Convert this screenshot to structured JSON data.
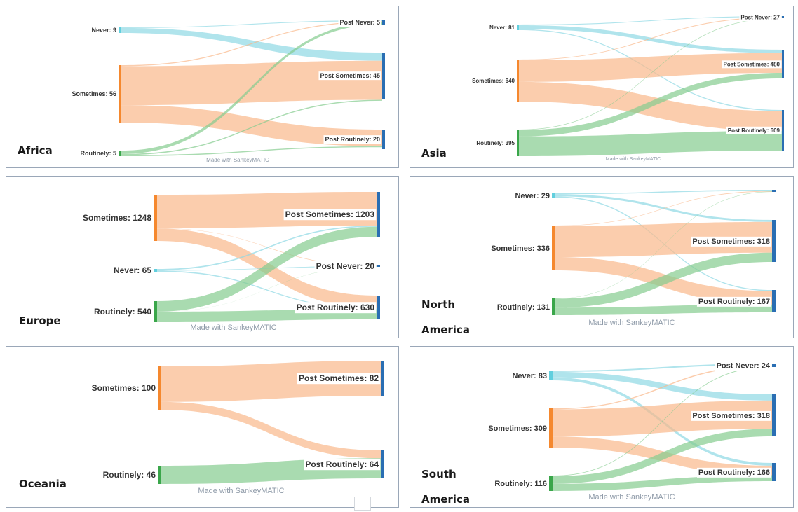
{
  "credit": "Made with SankeyMATIC",
  "colors": {
    "never": "#61cfde",
    "sometimes": "#f5882e",
    "routinely": "#3aa64a",
    "post": "#2a6eb3",
    "flow_never": "#8fd8e4",
    "flow_sometimes": "#f9b88a",
    "flow_routinely": "#84cc8e",
    "border": "#9aa7b8"
  },
  "panels": [
    {
      "region": "Africa",
      "sources": [
        {
          "key": "never",
          "label": "Never: 9",
          "value": 9
        },
        {
          "key": "sometimes",
          "label": "Sometimes: 56",
          "value": 56
        },
        {
          "key": "routinely",
          "label": "Routinely: 5",
          "value": 5
        }
      ],
      "targets": [
        {
          "key": "never",
          "label": "Post Never: 5",
          "value": 5
        },
        {
          "key": "sometimes",
          "label": "Post Sometimes: 45",
          "value": 45
        },
        {
          "key": "routinely",
          "label": "Post Routinely: 20",
          "value": 20
        }
      ],
      "flows": [
        {
          "from": "never",
          "to": "never",
          "value": 1
        },
        {
          "from": "never",
          "to": "sometimes",
          "value": 8
        },
        {
          "from": "sometimes",
          "to": "never",
          "value": 1
        },
        {
          "from": "sometimes",
          "to": "sometimes",
          "value": 38
        },
        {
          "from": "sometimes",
          "to": "routinely",
          "value": 17
        },
        {
          "from": "routinely",
          "to": "never",
          "value": 3
        },
        {
          "from": "routinely",
          "to": "sometimes",
          "value": 1
        },
        {
          "from": "routinely",
          "to": "routinely",
          "value": 1
        }
      ]
    },
    {
      "region": "Asia",
      "sources": [
        {
          "key": "never",
          "label": "Never: 81",
          "value": 81
        },
        {
          "key": "sometimes",
          "label": "Sometimes: 640",
          "value": 640
        },
        {
          "key": "routinely",
          "label": "Routinely: 395",
          "value": 395
        }
      ],
      "targets": [
        {
          "key": "never",
          "label": "Post Never: 27",
          "value": 27
        },
        {
          "key": "sometimes",
          "label": "Post Sometimes: 480",
          "value": 480
        },
        {
          "key": "routinely",
          "label": "Post Routinely: 609",
          "value": 609
        }
      ],
      "flows": [
        {
          "from": "never",
          "to": "never",
          "value": 10
        },
        {
          "from": "never",
          "to": "sometimes",
          "value": 56
        },
        {
          "from": "never",
          "to": "routinely",
          "value": 15
        },
        {
          "from": "sometimes",
          "to": "never",
          "value": 10
        },
        {
          "from": "sometimes",
          "to": "sometimes",
          "value": 330
        },
        {
          "from": "sometimes",
          "to": "routinely",
          "value": 300
        },
        {
          "from": "routinely",
          "to": "never",
          "value": 7
        },
        {
          "from": "routinely",
          "to": "sometimes",
          "value": 94
        },
        {
          "from": "routinely",
          "to": "routinely",
          "value": 294
        }
      ]
    },
    {
      "region": "Europe",
      "sources": [
        {
          "key": "sometimes",
          "label": "Sometimes: 1248",
          "value": 1248
        },
        {
          "key": "never",
          "label": "Never: 65",
          "value": 65
        },
        {
          "key": "routinely",
          "label": "Routinely: 540",
          "value": 540
        }
      ],
      "targets": [
        {
          "key": "sometimes",
          "label": "Post Sometimes: 1203",
          "value": 1203
        },
        {
          "key": "never",
          "label": "Post Never: 20",
          "value": 20
        },
        {
          "key": "routinely",
          "label": "Post Routinely: 630",
          "value": 630
        }
      ],
      "flows": [
        {
          "from": "sometimes",
          "to": "sometimes",
          "value": 905
        },
        {
          "from": "sometimes",
          "to": "never",
          "value": 8
        },
        {
          "from": "sometimes",
          "to": "routinely",
          "value": 335
        },
        {
          "from": "never",
          "to": "sometimes",
          "value": 30
        },
        {
          "from": "never",
          "to": "never",
          "value": 10
        },
        {
          "from": "never",
          "to": "routinely",
          "value": 25
        },
        {
          "from": "routinely",
          "to": "sometimes",
          "value": 268
        },
        {
          "from": "routinely",
          "to": "never",
          "value": 2
        },
        {
          "from": "routinely",
          "to": "routinely",
          "value": 270
        }
      ]
    },
    {
      "region": "North America",
      "sources": [
        {
          "key": "never",
          "label": "Never: 29",
          "value": 29
        },
        {
          "key": "sometimes",
          "label": "Sometimes: 336",
          "value": 336
        },
        {
          "key": "routinely",
          "label": "Routinely: 131",
          "value": 131
        }
      ],
      "targets": [
        {
          "key": "never",
          "label": "",
          "value": 11
        },
        {
          "key": "sometimes",
          "label": "Post Sometimes: 318",
          "value": 318
        },
        {
          "key": "routinely",
          "label": "Post Routinely: 167",
          "value": 167
        }
      ],
      "flows": [
        {
          "from": "never",
          "to": "never",
          "value": 6
        },
        {
          "from": "never",
          "to": "sometimes",
          "value": 15
        },
        {
          "from": "never",
          "to": "routinely",
          "value": 8
        },
        {
          "from": "sometimes",
          "to": "never",
          "value": 3
        },
        {
          "from": "sometimes",
          "to": "sometimes",
          "value": 233
        },
        {
          "from": "sometimes",
          "to": "routinely",
          "value": 100
        },
        {
          "from": "routinely",
          "to": "never",
          "value": 2
        },
        {
          "from": "routinely",
          "to": "sometimes",
          "value": 70
        },
        {
          "from": "routinely",
          "to": "routinely",
          "value": 59
        }
      ]
    },
    {
      "region": "Oceania",
      "sources": [
        {
          "key": "sometimes",
          "label": "Sometimes: 100",
          "value": 100
        },
        {
          "key": "routinely",
          "label": "Routinely: 46",
          "value": 46
        }
      ],
      "targets": [
        {
          "key": "sometimes",
          "label": "Post Sometimes: 82",
          "value": 82
        },
        {
          "key": "routinely",
          "label": "Post Routinely: 64",
          "value": 64
        }
      ],
      "flows": [
        {
          "from": "sometimes",
          "to": "sometimes",
          "value": 82
        },
        {
          "from": "sometimes",
          "to": "routinely",
          "value": 18
        },
        {
          "from": "routinely",
          "to": "routinely",
          "value": 46
        }
      ]
    },
    {
      "region": "South America",
      "sources": [
        {
          "key": "never",
          "label": "Never: 83",
          "value": 83
        },
        {
          "key": "sometimes",
          "label": "Sometimes: 309",
          "value": 309
        },
        {
          "key": "routinely",
          "label": "Routinely: 116",
          "value": 116
        }
      ],
      "targets": [
        {
          "key": "never",
          "label": "Post Never: 24",
          "value": 24
        },
        {
          "key": "sometimes",
          "label": "Post Sometimes: 318",
          "value": 318
        },
        {
          "key": "routinely",
          "label": "Post Routinely: 166",
          "value": 166
        }
      ],
      "flows": [
        {
          "from": "never",
          "to": "never",
          "value": 11
        },
        {
          "from": "never",
          "to": "sometimes",
          "value": 47
        },
        {
          "from": "never",
          "to": "routinely",
          "value": 25
        },
        {
          "from": "sometimes",
          "to": "never",
          "value": 8
        },
        {
          "from": "sometimes",
          "to": "sometimes",
          "value": 214
        },
        {
          "from": "sometimes",
          "to": "routinely",
          "value": 87
        },
        {
          "from": "routinely",
          "to": "never",
          "value": 5
        },
        {
          "from": "routinely",
          "to": "sometimes",
          "value": 57
        },
        {
          "from": "routinely",
          "to": "routinely",
          "value": 54
        }
      ]
    }
  ]
}
